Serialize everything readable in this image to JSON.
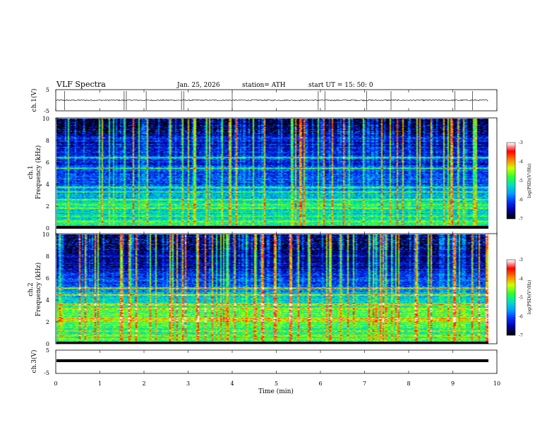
{
  "header": {
    "title": "VLF  Spectra",
    "date": "Jan. 25, 2026",
    "station": "station= ATH",
    "start": "start  UT  =    15: 50: 0"
  },
  "colors": {
    "colormap": [
      "#000000",
      "#0000a0",
      "#0030ff",
      "#00a0ff",
      "#00e0c0",
      "#30ff30",
      "#d0ff00",
      "#ff8000",
      "#ff0000",
      "#ffffff"
    ]
  },
  "chart_data": [
    {
      "type": "line",
      "name": "ch1-waveform",
      "ylabel": "ch.1(V)",
      "ylim": [
        -5,
        5
      ],
      "yticks": [
        "5",
        "-5"
      ],
      "xlim": [
        0,
        10
      ],
      "baseline_v": 0,
      "noise_v": 0.3,
      "spike_times_min": [
        0.2,
        1.55,
        1.6,
        2.05,
        2.85,
        2.9,
        4.0,
        5.95,
        6.1,
        7.05,
        7.6,
        9.05,
        9.45
      ]
    },
    {
      "type": "heatmap",
      "name": "ch2-spectrogram",
      "ylabel_parts": [
        "ch.1",
        "Frequency  (kHz)"
      ],
      "ylim": [
        0,
        10
      ],
      "yticks": [
        "0",
        "2",
        "4",
        "6",
        "8",
        "10"
      ],
      "xlim": [
        0,
        10
      ],
      "data_end_min": 9.8,
      "colorbar": {
        "label": "log(PSD)(V²/Hz)",
        "range": [
          -7,
          -3
        ],
        "ticks": [
          "-3",
          "-4",
          "-5",
          "-6",
          "-7"
        ]
      },
      "background_level_by_freq": [
        {
          "f": 0,
          "v": -5.0
        },
        {
          "f": 1,
          "v": -5.4
        },
        {
          "f": 2,
          "v": -5.3
        },
        {
          "f": 3,
          "v": -5.6
        },
        {
          "f": 4,
          "v": -6.1
        },
        {
          "f": 5,
          "v": -6.0
        },
        {
          "f": 6,
          "v": -6.2
        },
        {
          "f": 7,
          "v": -6.3
        },
        {
          "f": 8,
          "v": -6.3
        },
        {
          "f": 9,
          "v": -6.4
        },
        {
          "f": 10,
          "v": -6.5
        }
      ],
      "bands_khz": [
        0.45,
        0.9,
        1.7,
        2.0,
        2.5,
        3.2,
        3.6,
        5.4,
        6.4
      ],
      "band_level": -4.7
    },
    {
      "type": "heatmap",
      "name": "ch3-spectrogram",
      "ylabel_parts": [
        "ch.2",
        "Frequency  (kHz)"
      ],
      "ylim": [
        0,
        10
      ],
      "yticks": [
        "0",
        "2",
        "4",
        "6",
        "8",
        "10"
      ],
      "xlim": [
        0,
        10
      ],
      "data_end_min": 9.8,
      "colorbar": {
        "label": "log(PSD)(V²/Hz)",
        "range": [
          -7,
          -3
        ],
        "ticks": [
          "-3",
          "-4",
          "-5",
          "-6",
          "-7"
        ]
      },
      "background_level_by_freq": [
        {
          "f": 0,
          "v": -4.8
        },
        {
          "f": 1,
          "v": -5.0
        },
        {
          "f": 2,
          "v": -4.6
        },
        {
          "f": 3,
          "v": -4.9
        },
        {
          "f": 4,
          "v": -5.4
        },
        {
          "f": 5,
          "v": -5.9
        },
        {
          "f": 6,
          "v": -6.2
        },
        {
          "f": 7,
          "v": -6.5
        },
        {
          "f": 8,
          "v": -6.5
        },
        {
          "f": 9,
          "v": -6.4
        },
        {
          "f": 10,
          "v": -6.4
        }
      ],
      "bands_khz": [
        0.6,
        1.0,
        2.0,
        2.2,
        3.1,
        3.5,
        4.4,
        5.0
      ],
      "band_level": -4.2
    },
    {
      "type": "line",
      "name": "ch3-waveform",
      "ylabel": "ch.3(V)",
      "ylim": [
        -5,
        5
      ],
      "yticks": [
        "5",
        "-5"
      ],
      "xlim": [
        0,
        10
      ],
      "baseline_v": 0
    }
  ],
  "xaxis": {
    "label": "Time  (min)",
    "ticks": [
      "0",
      "1",
      "2",
      "3",
      "4",
      "5",
      "6",
      "7",
      "8",
      "9",
      "10"
    ]
  }
}
